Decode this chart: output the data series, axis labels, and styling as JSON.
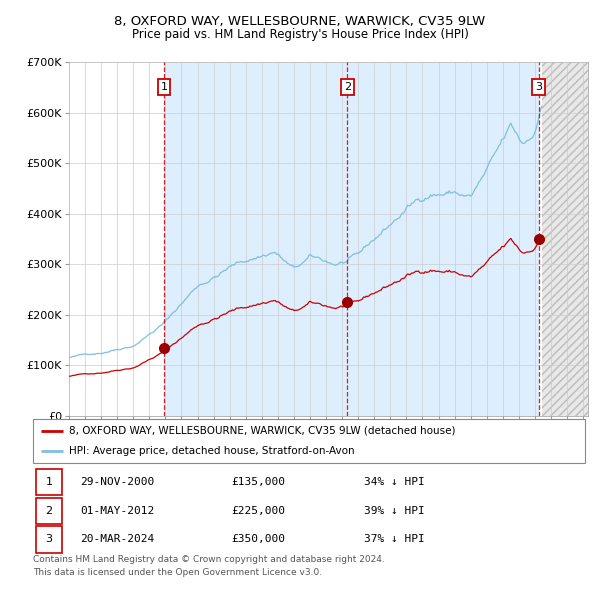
{
  "title": "8, OXFORD WAY, WELLESBOURNE, WARWICK, CV35 9LW",
  "subtitle": "Price paid vs. HM Land Registry's House Price Index (HPI)",
  "legend_line1": "8, OXFORD WAY, WELLESBOURNE, WARWICK, CV35 9LW (detached house)",
  "legend_line2": "HPI: Average price, detached house, Stratford-on-Avon",
  "footer1": "Contains HM Land Registry data © Crown copyright and database right 2024.",
  "footer2": "This data is licensed under the Open Government Licence v3.0.",
  "transactions": [
    {
      "label": "1",
      "date": "29-NOV-2000",
      "price": 135000,
      "pct": "34%",
      "dir": "↓"
    },
    {
      "label": "2",
      "date": "01-MAY-2012",
      "price": 225000,
      "pct": "39%",
      "dir": "↓"
    },
    {
      "label": "3",
      "date": "20-MAR-2024",
      "price": 350000,
      "pct": "37%",
      "dir": "↓"
    }
  ],
  "hpi_color": "#7fbfdf",
  "price_color": "#cc0000",
  "dot_color": "#990000",
  "vline_color": "#cc0000",
  "bg_shaded": "#ddeeff",
  "grid_color": "#cccccc",
  "ylim": [
    0,
    700000
  ],
  "yticks": [
    0,
    100000,
    200000,
    300000,
    400000,
    500000,
    600000,
    700000
  ],
  "ytick_labels": [
    "£0",
    "£100K",
    "£200K",
    "£300K",
    "£400K",
    "£500K",
    "£600K",
    "£700K"
  ],
  "x_start_year": 1995,
  "x_end_year": 2027,
  "last_data_year": 2024.42,
  "transaction_years": [
    2000.91,
    2012.33,
    2024.22
  ]
}
